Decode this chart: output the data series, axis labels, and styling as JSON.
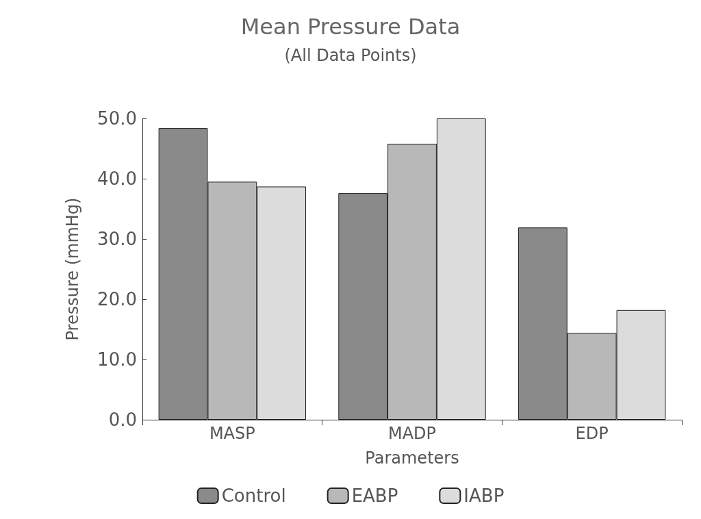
{
  "chart_data": {
    "type": "bar",
    "title": "Mean Pressure Data",
    "subtitle": "(All Data Points)",
    "xlabel": "Parameters",
    "ylabel": "Pressure (mmHg)",
    "categories": [
      "MASP",
      "MADP",
      "EDP"
    ],
    "series": [
      {
        "name": "Control",
        "color": "#8a8a8a",
        "values": [
          48.4,
          37.6,
          31.9
        ]
      },
      {
        "name": "EABP",
        "color": "#b8b8b8",
        "values": [
          39.5,
          45.8,
          14.4
        ]
      },
      {
        "name": "IABP",
        "color": "#dcdcdc",
        "values": [
          38.7,
          50.0,
          18.2
        ]
      }
    ],
    "ylim": [
      0,
      50
    ],
    "yticks": [
      {
        "value": 0,
        "label": "0.0"
      },
      {
        "value": 10,
        "label": "10.0"
      },
      {
        "value": 20,
        "label": "20.0"
      },
      {
        "value": 30,
        "label": "30.0"
      },
      {
        "value": 40,
        "label": "40.0"
      },
      {
        "value": 50,
        "label": "50.0"
      }
    ],
    "grid": false,
    "legend": "bottom"
  }
}
